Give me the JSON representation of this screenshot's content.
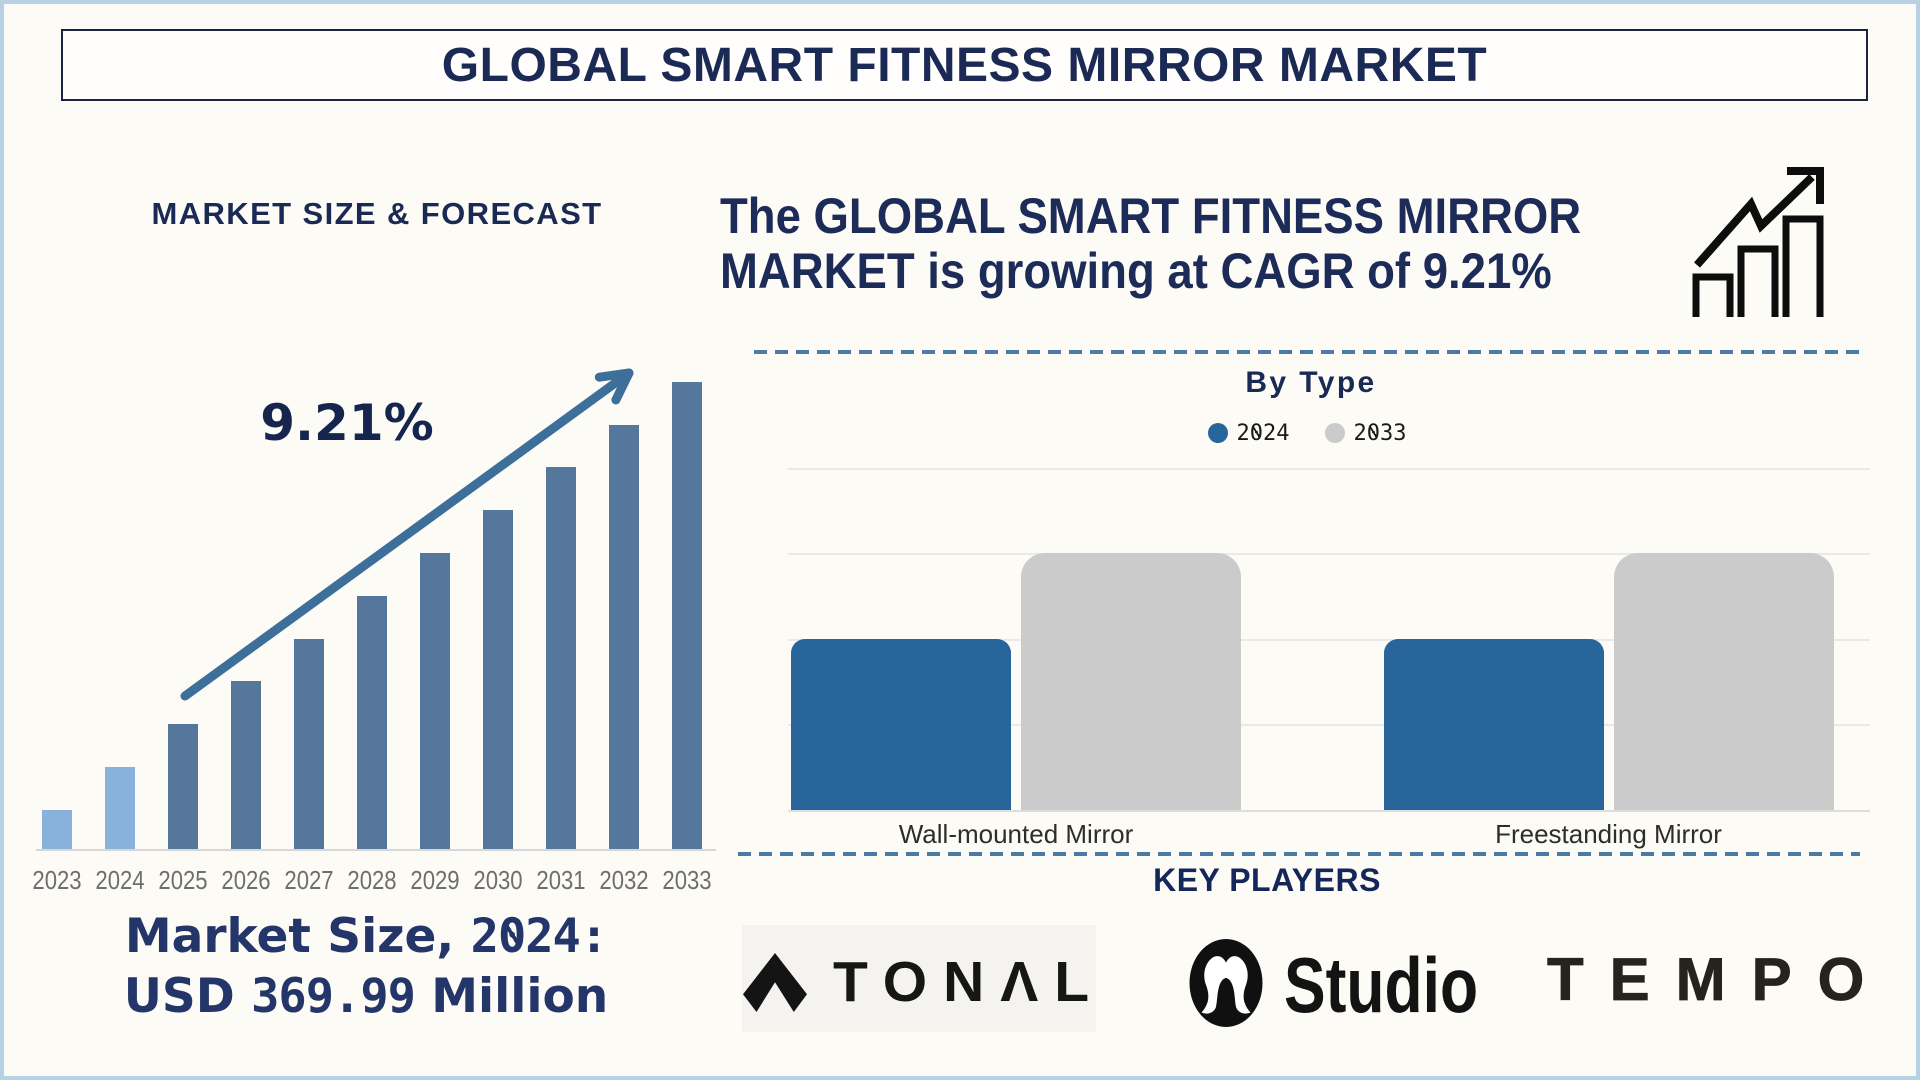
{
  "title": "GLOBAL SMART FITNESS MIRROR MARKET",
  "left_panel": {
    "heading": "MARKET SIZE & FORECAST",
    "cagr_annotation": "9.21%",
    "market_size_line1": "Market Size, 2024:",
    "market_size_line2": "USD 369.99 Million"
  },
  "right_panel": {
    "headline_lines": [
      "The GLOBAL SMART FITNESS MIRROR",
      "MARKET is growing at CAGR of 9.21%"
    ],
    "by_type_title": "By Type",
    "key_players_title": "KEY PLAYERS",
    "players": [
      "TONAL",
      "lululemon Studio",
      "TEMPO"
    ],
    "tonal_wordmark": "TONΛL",
    "studio_wordmark": "Studio",
    "tempo_wordmark": "TEMPO"
  },
  "chart_data": [
    {
      "id": "market-size-forecast",
      "type": "bar",
      "title": "MARKET SIZE & FORECAST",
      "categories": [
        "2023",
        "2024",
        "2025",
        "2026",
        "2027",
        "2028",
        "2029",
        "2030",
        "2031",
        "2032",
        "2033"
      ],
      "values": [
        8.4,
        17.6,
        26.8,
        35.9,
        45.0,
        54.1,
        63.4,
        72.5,
        81.7,
        90.8,
        100
      ],
      "unit": "relative bar height, % of 2033 bar (value axis not labeled in figure)",
      "highlight_categories": [
        "2023",
        "2024"
      ],
      "bar_color_default": "#54779b",
      "bar_color_highlight": "#88b2db",
      "annotation": "9.21%",
      "note": "Market Size, 2024: USD 369.99 Million",
      "xlabel": "",
      "ylabel": "",
      "grid": false
    },
    {
      "id": "by-type",
      "type": "bar",
      "title": "By Type",
      "categories": [
        "Wall-mounted Mirror",
        "Freestanding Mirror"
      ],
      "series": [
        {
          "name": "2024",
          "color": "#27659a",
          "values": [
            2,
            2
          ]
        },
        {
          "name": "2033",
          "color": "#cbcbcb",
          "values": [
            3,
            3
          ]
        }
      ],
      "ylim": [
        0,
        4
      ],
      "unit": "gridline units (value axis not labeled in figure)",
      "legend_position": "top",
      "xlabel": "",
      "ylabel": "",
      "grid": true
    }
  ]
}
